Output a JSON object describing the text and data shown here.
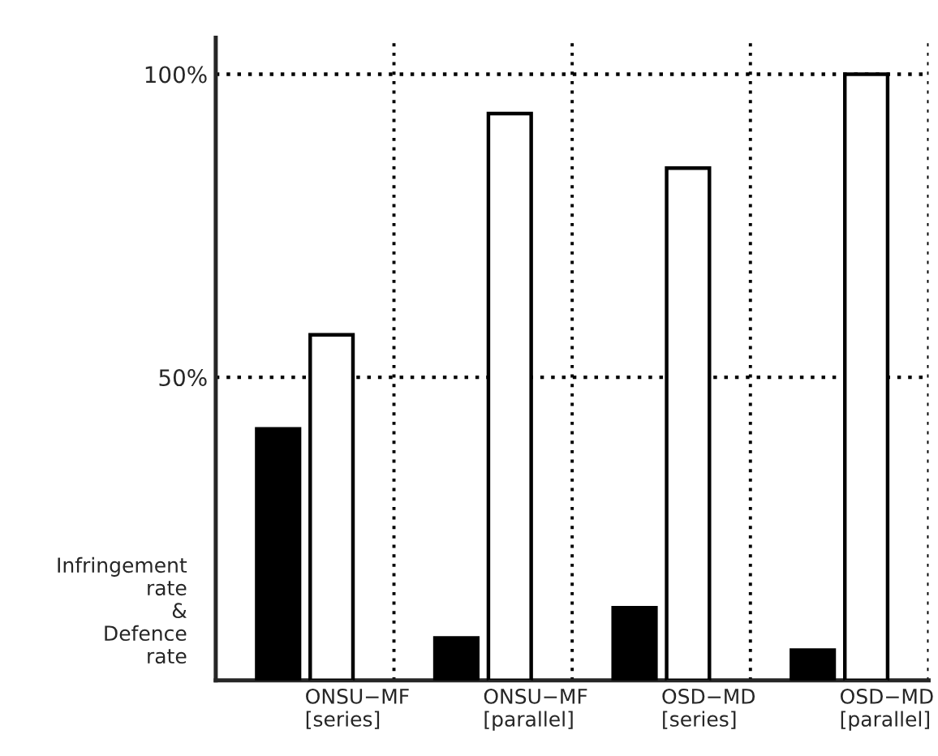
{
  "chart_data": {
    "type": "bar",
    "ylabel": "Infringement\nrate\n&\nDefence\nrate",
    "categories": [
      "ONSU−MF\n[series]",
      "ONSU−MF\n[parallel]",
      "OSD−MD\n[series]",
      "OSD−MD\n[parallel]"
    ],
    "series": [
      {
        "color": "#000000",
        "values": [
          41.5,
          7,
          12,
          5
        ]
      },
      {
        "color": "#ffffff",
        "values": [
          57,
          93.5,
          84.5,
          100
        ]
      }
    ],
    "ylim": [
      0,
      106
    ],
    "yticks": [
      {
        "value": 50,
        "label": "50%"
      },
      {
        "value": 100,
        "label": "100%"
      }
    ],
    "grid": "y"
  }
}
